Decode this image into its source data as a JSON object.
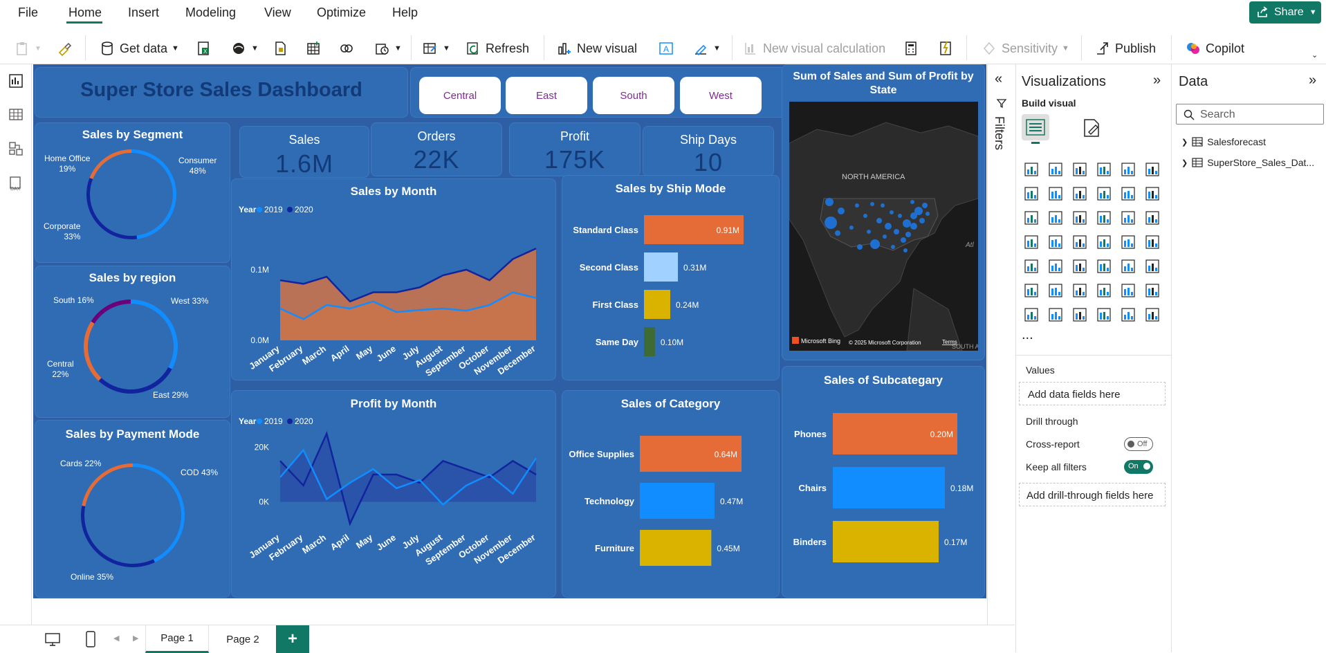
{
  "menu": {
    "items": [
      "File",
      "Home",
      "Insert",
      "Modeling",
      "View",
      "Optimize",
      "Help"
    ],
    "share": "Share"
  },
  "ribbon": {
    "get_data": "Get data",
    "refresh": "Refresh",
    "new_visual": "New visual",
    "new_visual_calc": "New visual calculation",
    "sensitivity": "Sensitivity",
    "publish": "Publish",
    "copilot": "Copilot"
  },
  "dashboard": {
    "title": "Super Store Sales Dashboard",
    "slicers": [
      "Central",
      "East",
      "South",
      "West"
    ],
    "kpis": [
      {
        "label": "Sales",
        "value": "1.6M"
      },
      {
        "label": "Orders",
        "value": "22K"
      },
      {
        "label": "Profit",
        "value": "175K"
      },
      {
        "label": "Ship Days",
        "value": "10"
      }
    ],
    "segment": {
      "title": "Sales by Segment",
      "labels": [
        "Home Office\n19%",
        "Consumer\n48%",
        "Corporate\n33%"
      ]
    },
    "region": {
      "title": "Sales by region",
      "labels": [
        "South 16%",
        "West 33%",
        "Central\n22%",
        "East 29%"
      ]
    },
    "payment": {
      "title": "Sales by Payment Mode",
      "labels": [
        "Cards 22%",
        "COD 43%",
        "Online 35%"
      ]
    },
    "sales_month": {
      "title": "Sales by Month",
      "legend_title": "Year",
      "legend": [
        "2019",
        "2020"
      ],
      "yticks": [
        "0.1M",
        "0.0M"
      ]
    },
    "profit_month": {
      "title": "Profit by Month",
      "legend_title": "Year",
      "legend": [
        "2019",
        "2020"
      ],
      "yticks": [
        "20K",
        "0K"
      ]
    },
    "ship_mode": {
      "title": "Sales by Ship Mode"
    },
    "category": {
      "title": "Sales of Category"
    },
    "map": {
      "title": "Sum of Sales and Sum of Profit by State",
      "region_label": "NORTH AMERICA",
      "bing": "Microsoft Bing",
      "copyright": "© 2025 Microsoft Corporation",
      "terms": "Terms",
      "atl": "Atl",
      "south_a": "SOUTH A"
    },
    "subcategory": {
      "title": "Sales of Subcategary"
    }
  },
  "chart_data": [
    {
      "type": "pie",
      "title": "Sales by Segment",
      "labels": [
        "Consumer",
        "Corporate",
        "Home Office"
      ],
      "values": [
        48,
        33,
        19
      ],
      "colors": [
        "#118dff",
        "#12239e",
        "#e66c37"
      ]
    },
    {
      "type": "pie",
      "title": "Sales by region",
      "labels": [
        "West",
        "East",
        "Central",
        "South"
      ],
      "values": [
        33,
        29,
        22,
        16
      ],
      "colors": [
        "#118dff",
        "#12239e",
        "#e66c37",
        "#6b007b"
      ]
    },
    {
      "type": "pie",
      "title": "Sales by Payment Mode",
      "labels": [
        "COD",
        "Online",
        "Cards"
      ],
      "values": [
        43,
        35,
        22
      ],
      "colors": [
        "#118dff",
        "#12239e",
        "#e66c37"
      ]
    },
    {
      "type": "area",
      "title": "Sales by Month",
      "categories": [
        "January",
        "February",
        "March",
        "April",
        "May",
        "June",
        "July",
        "August",
        "September",
        "October",
        "November",
        "December"
      ],
      "series": [
        {
          "name": "2019",
          "values": [
            0.045,
            0.03,
            0.05,
            0.045,
            0.055,
            0.04,
            0.043,
            0.045,
            0.042,
            0.05,
            0.068,
            0.06
          ],
          "color": "#118dff"
        },
        {
          "name": "2020",
          "values": [
            0.085,
            0.08,
            0.09,
            0.055,
            0.068,
            0.068,
            0.075,
            0.092,
            0.1,
            0.085,
            0.115,
            0.13
          ],
          "color": "#12239e"
        }
      ],
      "ylim": [
        0,
        0.14
      ]
    },
    {
      "type": "area",
      "title": "Profit by Month",
      "categories": [
        "January",
        "February",
        "March",
        "April",
        "May",
        "June",
        "July",
        "August",
        "September",
        "October",
        "November",
        "December"
      ],
      "series": [
        {
          "name": "2019",
          "values": [
            9000,
            19000,
            1000,
            7000,
            12000,
            5000,
            8000,
            -1000,
            6000,
            10000,
            3000,
            16000
          ],
          "color": "#118dff"
        },
        {
          "name": "2020",
          "values": [
            15000,
            6000,
            25000,
            -8000,
            10000,
            10000,
            7000,
            15000,
            12000,
            9000,
            15000,
            10000
          ],
          "color": "#12239e"
        }
      ],
      "ylim": [
        -10000,
        28000
      ]
    },
    {
      "type": "bar",
      "title": "Sales by Ship Mode",
      "categories": [
        "Standard Class",
        "Second Class",
        "First Class",
        "Same Day"
      ],
      "values": [
        0.91,
        0.31,
        0.24,
        0.1
      ],
      "value_labels": [
        "0.91M",
        "0.31M",
        "0.24M",
        "0.10M"
      ],
      "colors": [
        "#e66c37",
        "#a0d1ff",
        "#d9b300",
        "#3d6b33"
      ]
    },
    {
      "type": "bar",
      "title": "Sales of Category",
      "categories": [
        "Office Supplies",
        "Technology",
        "Furniture"
      ],
      "values": [
        0.64,
        0.47,
        0.45
      ],
      "value_labels": [
        "0.64M",
        "0.47M",
        "0.45M"
      ],
      "colors": [
        "#e66c37",
        "#118dff",
        "#d9b300"
      ]
    },
    {
      "type": "bar",
      "title": "Sales of Subcategary",
      "categories": [
        "Phones",
        "Chairs",
        "Binders"
      ],
      "values": [
        0.2,
        0.18,
        0.17
      ],
      "value_labels": [
        "0.20M",
        "0.18M",
        "0.17M"
      ],
      "colors": [
        "#e66c37",
        "#118dff",
        "#d9b300"
      ]
    }
  ],
  "filters_label": "Filters",
  "viz_pane": {
    "title": "Visualizations",
    "build_visual": "Build visual",
    "values_label": "Values",
    "add_data_fields": "Add data fields here",
    "drill_through": "Drill through",
    "cross_report": "Cross-report",
    "cross_report_state": "Off",
    "keep_filters": "Keep all filters",
    "keep_filters_state": "On",
    "add_drill": "Add drill-through fields here",
    "more": "..."
  },
  "data_pane": {
    "title": "Data",
    "search_placeholder": "Search",
    "tables": [
      "Salesforecast",
      "SuperStore_Sales_Dat..."
    ]
  },
  "pages": {
    "tabs": [
      "Page 1",
      "Page 2"
    ],
    "add": "+"
  }
}
